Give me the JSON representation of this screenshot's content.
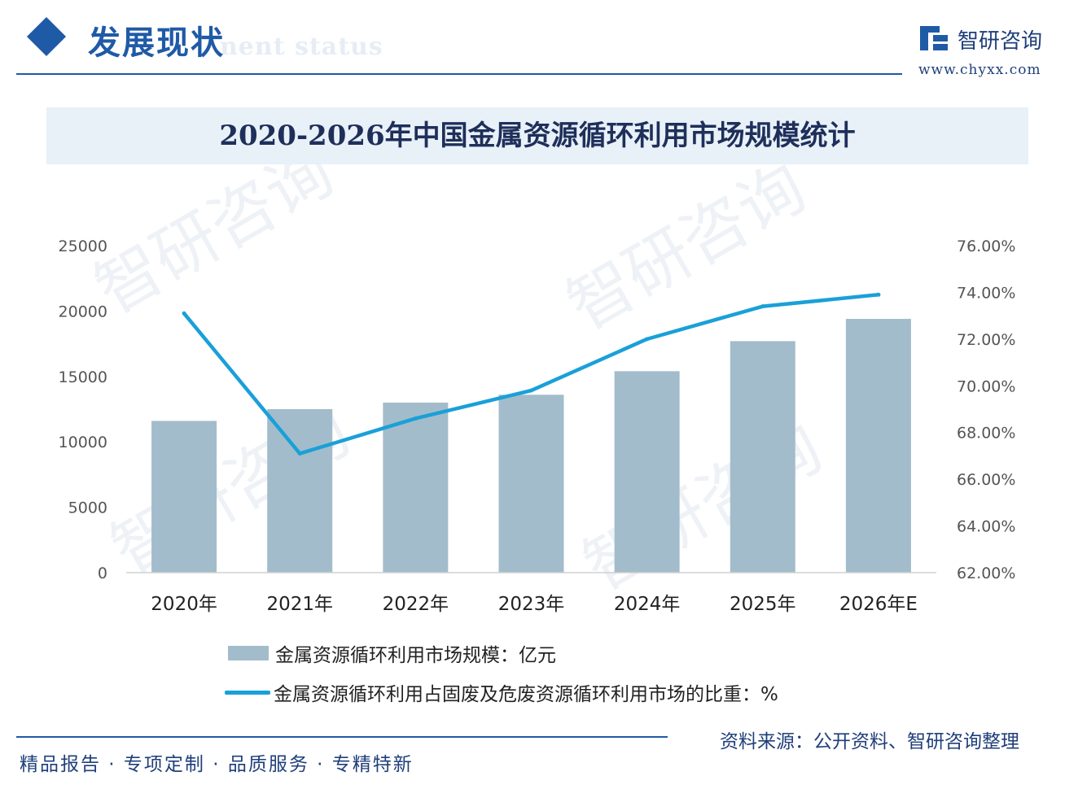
{
  "header": {
    "section_title": "发展现状",
    "section_subtitle": "nent status",
    "logo_text": "智研咨询",
    "logo_url": "www.chyxx.com",
    "accent_color": "#1f5aa6"
  },
  "chart_data": {
    "type": "bar",
    "title": "2020-2026年中国金属资源循环利用市场规模统计",
    "categories": [
      "2020年",
      "2021年",
      "2022年",
      "2023年",
      "2024年",
      "2025年",
      "2026年E"
    ],
    "y_left": {
      "ticks": [
        "25000",
        "20000",
        "15000",
        "10000",
        "5000",
        "0"
      ],
      "range": [
        0,
        25000
      ]
    },
    "y_right": {
      "ticks": [
        "76.00%",
        "74.00%",
        "72.00%",
        "70.00%",
        "68.00%",
        "66.00%",
        "64.00%",
        "62.00%"
      ],
      "range": [
        62,
        76
      ]
    },
    "series": [
      {
        "name": "金属资源循环利用市场规模：亿元",
        "type": "bar",
        "axis": "left",
        "color": "#a3bccb",
        "values": [
          11600,
          12500,
          13000,
          13600,
          15400,
          17700,
          19400
        ]
      },
      {
        "name": "金属资源循环利用占固废及危废资源循环利用市场的比重：%",
        "type": "line",
        "axis": "right",
        "color": "#1aa0d8",
        "values": [
          73.1,
          67.1,
          68.6,
          69.8,
          72.0,
          73.4,
          73.9
        ]
      }
    ],
    "grid": false,
    "legend_position": "bottom"
  },
  "footer": {
    "slogan": "精品报告 · 专项定制 · 品质服务 · 专精特新",
    "source": "资料来源：公开资料、智研咨询整理",
    "watermark": "智研咨询"
  }
}
